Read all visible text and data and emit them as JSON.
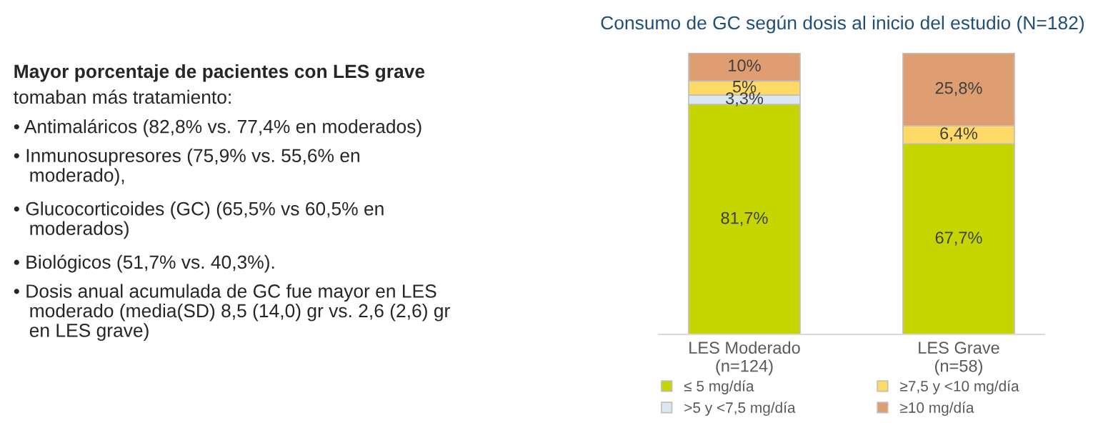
{
  "chart_data": {
    "type": "bar",
    "stacked": true,
    "title": "Consumo de GC según dosis al inicio del estudio (N=182)",
    "categories": [
      "LES Moderado\n(n=124)",
      "LES Grave\n(n=58)"
    ],
    "series": [
      {
        "name": "≤ 5 mg/día",
        "color": "#c5d500",
        "values": [
          81.7,
          67.7
        ],
        "value_labels": [
          "81,7%",
          "67,7%"
        ]
      },
      {
        "name": ">5 y <7,5 mg/día",
        "color": "#dde7f1",
        "values": [
          3.3,
          null
        ],
        "value_labels": [
          "3,3%",
          null
        ]
      },
      {
        "name": "≥7,5 y <10 mg/día",
        "color": "#ffd966",
        "values": [
          5,
          6.4
        ],
        "value_labels": [
          "5%",
          "6,4%"
        ]
      },
      {
        "name": "≥10 mg/día",
        "color": "#df9e72",
        "values": [
          10,
          25.8
        ],
        "value_labels": [
          "10%",
          "25,8%"
        ]
      }
    ],
    "ylim": [
      0,
      100
    ],
    "tick_labels": "x",
    "legend": "bottom",
    "grid": false,
    "annotations": [
      "Mayor porcentaje de pacientes con LES grave",
      "tomaban más tratamiento:",
      "• Antimaláricos (82,8% vs. 77,4% en moderados)",
      "• Inmunosupresores (75,9% vs. 55,6% en\n   moderado),",
      "• Glucocorticoides (GC) (65,5% vs 60,5% en\n   moderados)",
      "• Biológicos (51,7% vs. 40,3%).",
      "• Dosis anual acumulada de GC fue mayor en LES\n   moderado (media(SD) 8,5 (14,0) gr vs. 2,6 (2,6) gr\n   en LES grave)"
    ]
  }
}
